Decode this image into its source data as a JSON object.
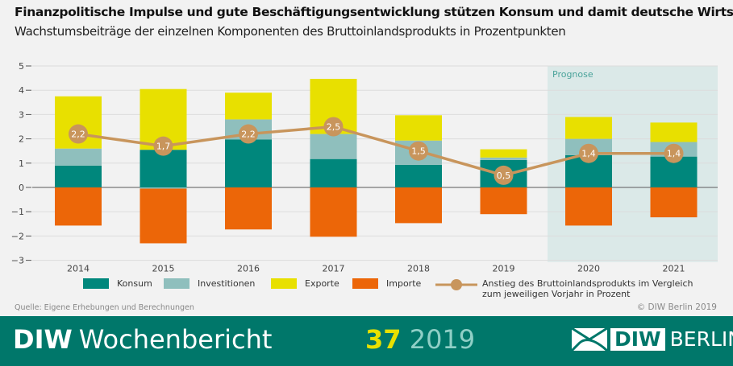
{
  "title": "Finanzpolitische Impulse und gute Beschäftigungsentwicklung stützen Konsum und damit deutsche Wirtschaft",
  "subtitle": "Wachstumsbeiträge der einzelnen Komponenten des Bruttoinlandsprodukts in Prozentpunkten",
  "chart_data": {
    "type": "bar",
    "stacked": true,
    "categories": [
      "2014",
      "2015",
      "2016",
      "2017",
      "2018",
      "2019",
      "2020",
      "2021"
    ],
    "ylim": [
      -3,
      5
    ],
    "yticks": [
      "5",
      "4",
      "3",
      "2",
      "1",
      "0",
      "−1",
      "−2",
      "−3"
    ],
    "grid": true,
    "forecast_label": "Prognose",
    "forecast_from": "2020",
    "series": [
      {
        "name": "Konsum",
        "color": "#00877c",
        "values": [
          0.9,
          1.55,
          1.97,
          1.17,
          0.93,
          1.13,
          1.33,
          1.27
        ]
      },
      {
        "name": "Investitionen",
        "color": "#8fbfbd",
        "values": [
          0.7,
          -0.05,
          0.83,
          1.03,
          1.0,
          0.1,
          0.67,
          0.6
        ]
      },
      {
        "name": "Exporte",
        "color": "#e8e000",
        "values": [
          2.15,
          2.5,
          1.1,
          2.27,
          1.04,
          0.34,
          0.9,
          0.8
        ]
      },
      {
        "name": "Importe",
        "color": "#ec6608",
        "values": [
          -1.57,
          -2.25,
          -1.73,
          -2.03,
          -1.47,
          -1.1,
          -1.57,
          -1.23
        ]
      }
    ],
    "line": {
      "name": "Anstieg des Bruttoinlandsprodukts im Vergleich zum jeweiligen Vorjahr in Prozent",
      "name_line1": "Anstieg des Bruttoinlandsprodukts im Vergleich",
      "name_line2": "zum jeweiligen Vorjahr in Prozent",
      "color": "#c8955c",
      "values": [
        2.2,
        1.7,
        2.2,
        2.5,
        1.5,
        0.5,
        1.4,
        1.4
      ],
      "labels": [
        "2,2",
        "1,7",
        "2,2",
        "2,5",
        "1,5",
        "0,5",
        "1,4",
        "1,4"
      ]
    },
    "legend_position": "bottom"
  },
  "source": "Quelle: Eigene Erhebungen und Berechnungen",
  "copyright": "© DIW Berlin 2019",
  "footer": {
    "brand": "DIW",
    "publication": "Wochenbericht",
    "issue": "37",
    "year": "2019",
    "logo_text": "DIW BERLIN"
  }
}
